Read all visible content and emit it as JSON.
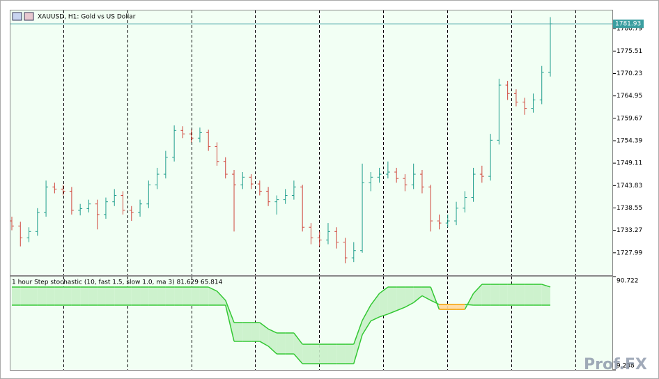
{
  "chart_data": [
    {
      "type": "ohlc",
      "title": "XAUUSD, H1:  Gold vs US Dollar",
      "up_color": "#1e9e8c",
      "down_color": "#d0453a",
      "open": [
        1735.5,
        1734.3,
        1731.5,
        1733.0,
        1737.5,
        1743.5,
        1743.0,
        1742.5,
        1738.0,
        1738.4,
        1739.5,
        1737.0,
        1740.0,
        1741.5,
        1738.0,
        1737.5,
        1739.5,
        1744.0,
        1746.5,
        1750.5,
        1756.8,
        1756.0,
        1755.0,
        1756.3,
        1753.0,
        1749.5,
        1746.5,
        1744.0,
        1745.8,
        1744.2,
        1742.5,
        1740.0,
        1740.5,
        1741.5,
        1743.5,
        1734.0,
        1731.5,
        1731.0,
        1733.0,
        1730.5,
        1726.8,
        1728.5,
        1744.5,
        1745.8,
        1746.5,
        1747.0,
        1745.5,
        1744.0,
        1746.5,
        1743.5,
        1735.5,
        1735.0,
        1735.5,
        1738.5,
        1741.0,
        1746.5,
        1746.0,
        1754.5,
        1767.5,
        1765.5,
        1763.5,
        1762.0,
        1764.0,
        1770.5
      ],
      "high": [
        1736.5,
        1735.3,
        1734.0,
        1738.5,
        1745.0,
        1744.5,
        1744.0,
        1743.5,
        1739.5,
        1740.5,
        1740.5,
        1741.0,
        1743.0,
        1742.5,
        1739.0,
        1740.5,
        1745.0,
        1748.0,
        1752.0,
        1758.0,
        1757.8,
        1757.0,
        1757.5,
        1757.0,
        1754.0,
        1750.5,
        1747.5,
        1747.0,
        1746.5,
        1745.0,
        1743.5,
        1741.5,
        1743.0,
        1745.0,
        1744.0,
        1735.0,
        1733.0,
        1735.0,
        1734.0,
        1731.5,
        1730.5,
        1749.0,
        1747.0,
        1748.0,
        1749.5,
        1748.0,
        1746.5,
        1749.0,
        1747.5,
        1744.0,
        1737.0,
        1737.0,
        1740.0,
        1742.5,
        1748.0,
        1748.5,
        1756.0,
        1769.0,
        1768.5,
        1766.5,
        1764.5,
        1765.5,
        1772.0,
        1783.5
      ],
      "low": [
        1733.3,
        1729.5,
        1730.5,
        1732.0,
        1736.5,
        1742.0,
        1741.5,
        1737.0,
        1736.8,
        1737.5,
        1733.5,
        1736.0,
        1739.0,
        1737.0,
        1735.5,
        1736.5,
        1738.5,
        1743.0,
        1745.5,
        1749.5,
        1755.0,
        1754.0,
        1754.0,
        1752.0,
        1748.5,
        1745.5,
        1733.0,
        1743.0,
        1743.0,
        1741.5,
        1739.0,
        1737.0,
        1739.5,
        1740.5,
        1733.0,
        1730.0,
        1729.5,
        1730.0,
        1729.0,
        1725.5,
        1725.8,
        1728.0,
        1742.5,
        1744.5,
        1745.5,
        1744.5,
        1742.5,
        1743.0,
        1742.0,
        1733.0,
        1733.5,
        1734.0,
        1734.5,
        1737.5,
        1740.0,
        1744.5,
        1745.0,
        1753.5,
        1764.0,
        1762.5,
        1760.5,
        1761.0,
        1763.0,
        1769.5
      ],
      "close": [
        1734.3,
        1731.5,
        1733.0,
        1737.5,
        1743.5,
        1743.0,
        1742.5,
        1738.0,
        1738.4,
        1739.5,
        1737.0,
        1740.0,
        1741.5,
        1738.0,
        1737.5,
        1739.5,
        1744.0,
        1746.5,
        1750.5,
        1756.8,
        1756.0,
        1755.0,
        1756.3,
        1753.0,
        1749.5,
        1746.5,
        1744.0,
        1745.8,
        1744.2,
        1742.5,
        1740.0,
        1740.5,
        1741.5,
        1743.5,
        1734.0,
        1731.5,
        1731.0,
        1733.0,
        1730.5,
        1726.8,
        1728.5,
        1744.5,
        1745.8,
        1746.5,
        1747.0,
        1745.5,
        1744.0,
        1746.5,
        1743.5,
        1735.5,
        1735.0,
        1735.5,
        1738.5,
        1741.0,
        1746.5,
        1746.0,
        1754.5,
        1767.5,
        1765.5,
        1763.5,
        1762.0,
        1764.0,
        1770.5,
        1781.93
      ],
      "current_price": 1781.93,
      "current_price_color": "#3a9ea0",
      "ylim": [
        1722.71,
        1785.08
      ],
      "yticks": [
        1780.79,
        1775.51,
        1770.23,
        1764.95,
        1759.67,
        1754.39,
        1749.11,
        1743.83,
        1738.55,
        1733.27,
        1727.99
      ]
    },
    {
      "type": "band",
      "title": "1 hour Step stochastic (10, fast 1.5, slow 1.0, ma 3) 81.629 65.814",
      "up_color": "#33c833",
      "down_color": "#f5a000",
      "up_fill": "#cdf2cd",
      "down_fill": "#ffdca6",
      "series": [
        {
          "values": [
            81.6,
            81.6,
            81.6,
            81.6,
            81.6,
            81.6,
            81.6,
            81.6,
            81.6,
            81.6,
            81.6,
            81.6,
            81.6,
            81.6,
            81.6,
            81.6,
            81.6,
            81.6,
            81.6,
            81.6,
            81.6,
            81.6,
            81.6,
            81.6,
            78.0,
            70.0,
            50.6,
            50.6,
            50.6,
            50.6,
            45.0,
            41.5,
            41.5,
            41.5,
            31.7,
            31.7,
            31.7,
            31.7,
            31.7,
            31.7,
            31.7,
            52.4,
            66.0,
            76.0,
            81.6,
            81.6,
            81.6,
            81.6,
            81.6,
            81.6,
            62.1,
            62.1,
            62.1,
            62.1,
            76.0,
            84.0,
            84.0,
            84.0,
            84.0,
            84.0,
            84.0,
            84.0,
            84.0,
            81.629
          ]
        },
        {
          "values": [
            65.8,
            65.8,
            65.8,
            65.8,
            65.8,
            65.8,
            65.8,
            65.8,
            65.8,
            65.8,
            65.8,
            65.8,
            65.8,
            65.8,
            65.8,
            65.8,
            65.8,
            65.8,
            65.8,
            65.8,
            65.8,
            65.8,
            65.8,
            65.8,
            65.8,
            65.8,
            34.2,
            34.2,
            34.2,
            34.2,
            30.0,
            23.2,
            23.2,
            23.2,
            14.7,
            14.7,
            14.7,
            14.7,
            14.7,
            14.7,
            14.7,
            40.0,
            52.0,
            55.5,
            58.0,
            61.0,
            64.0,
            68.0,
            74.0,
            70.0,
            66.4,
            66.4,
            66.4,
            66.4,
            65.8,
            65.8,
            65.8,
            65.8,
            65.8,
            65.8,
            65.8,
            65.8,
            65.8,
            65.814
          ]
        }
      ],
      "ylim": [
        9.238,
        90.722
      ],
      "yticks": [
        90.722,
        9.238
      ]
    }
  ],
  "watermark": "Prof.FX"
}
